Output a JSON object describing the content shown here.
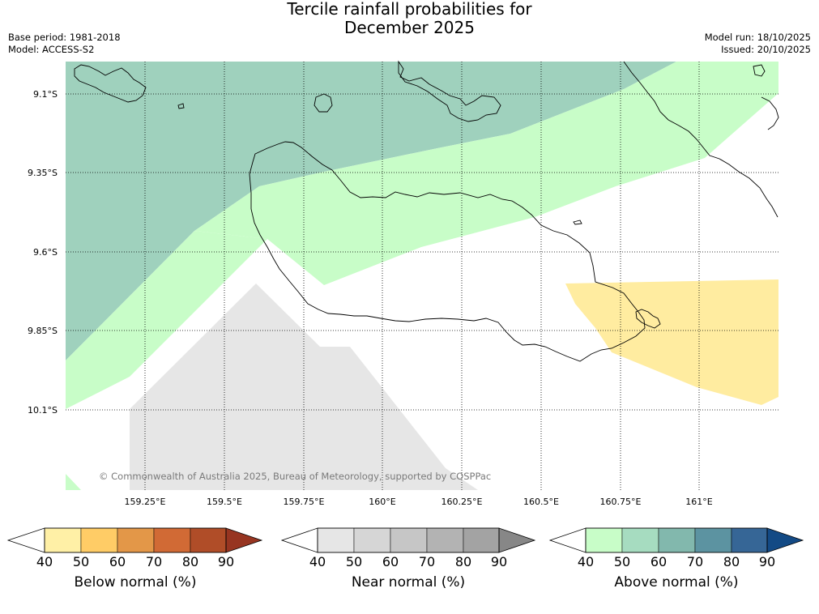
{
  "title_line1": "Tercile rainfall probabilities for",
  "title_line2": "December 2025",
  "meta_left": [
    "Base period: 1981-2018",
    "Model: ACCESS-S2"
  ],
  "meta_right": [
    "Model run: 18/10/2025",
    "Issued: 20/10/2025"
  ],
  "lat_labels": [
    "9.1°S",
    "9.35°S",
    "9.6°S",
    "9.85°S",
    "10.1°S"
  ],
  "lon_labels": [
    "159.25°E",
    "159.5°E",
    "159.75°E",
    "160°E",
    "160.25°E",
    "160.5°E",
    "160.75°E",
    "161°E"
  ],
  "copyright": "© Commonwealth of Australia 2025, Bureau of Meteorology, supported by COSPPac",
  "colorbars": [
    {
      "title": "Below normal (%)",
      "ticks": [
        "40",
        "50",
        "60",
        "70",
        "80",
        "90"
      ],
      "colors": [
        "#fff0a6",
        "#ffcc66",
        "#e39748",
        "#d16a35",
        "#b04d28",
        "#973521"
      ]
    },
    {
      "title": "Near normal (%)",
      "ticks": [
        "40",
        "50",
        "60",
        "70",
        "80",
        "90"
      ],
      "colors": [
        "#e6e6e6",
        "#d6d6d6",
        "#c6c6c6",
        "#b3b3b3",
        "#a3a3a3",
        "#878787"
      ]
    },
    {
      "title": "Above normal (%)",
      "ticks": [
        "40",
        "50",
        "60",
        "70",
        "80",
        "90"
      ],
      "colors": [
        "#c8fdc8",
        "#a6dcc0",
        "#82b8ad",
        "#5c93a1",
        "#366696",
        "#134a85"
      ]
    }
  ],
  "region_colors": {
    "above_50": "#9fd1bd",
    "above_40": "#c8fdc8",
    "below_40": "#ffeca0",
    "near_40": "#e6e6e6"
  }
}
